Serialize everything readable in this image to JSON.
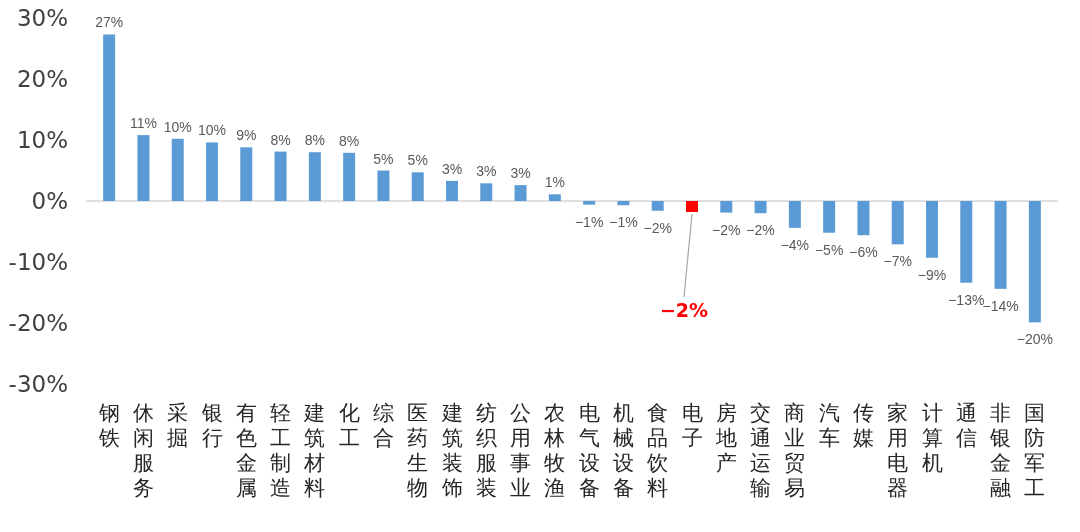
{
  "chart_data": {
    "type": "bar",
    "categories": [
      "钢铁",
      "休闲服务",
      "采掘",
      "银行",
      "有色金属",
      "轻工制造",
      "建筑材料",
      "化工",
      "综合",
      "医药生物",
      "建筑装饰",
      "纺织服装",
      "公用事业",
      "农林牧渔",
      "电气设备",
      "机械设备",
      "食品饮料",
      "电子",
      "房地产",
      "交通运输",
      "商业贸易",
      "汽车",
      "传媒",
      "家用电器",
      "计算机",
      "通信",
      "非银金融",
      "国防军工"
    ],
    "values": [
      27.3,
      10.8,
      10.2,
      9.6,
      8.8,
      8.1,
      8.0,
      7.9,
      5.0,
      4.7,
      3.3,
      2.9,
      2.6,
      1.1,
      -0.6,
      -0.7,
      -1.6,
      -1.8,
      -1.9,
      -2.0,
      -4.4,
      -5.2,
      -5.6,
      -7.1,
      -9.3,
      -13.4,
      -14.4,
      -19.9
    ],
    "colors": [
      "#5b9bd5",
      "#5b9bd5",
      "#5b9bd5",
      "#5b9bd5",
      "#5b9bd5",
      "#5b9bd5",
      "#5b9bd5",
      "#5b9bd5",
      "#5b9bd5",
      "#5b9bd5",
      "#5b9bd5",
      "#5b9bd5",
      "#5b9bd5",
      "#5b9bd5",
      "#5b9bd5",
      "#5b9bd5",
      "#5b9bd5",
      "#ff0000",
      "#5b9bd5",
      "#5b9bd5",
      "#5b9bd5",
      "#5b9bd5",
      "#5b9bd5",
      "#5b9bd5",
      "#5b9bd5",
      "#5b9bd5",
      "#5b9bd5",
      "#5b9bd5"
    ],
    "value_labels": [
      "27%",
      "11%",
      "10%",
      "10%",
      "9%",
      "8%",
      "8%",
      "8%",
      "5%",
      "5%",
      "3%",
      "3%",
      "3%",
      "1%",
      "−1%",
      "−1%",
      "−2%",
      "−2%",
      "−2%",
      "−2%",
      "−4%",
      "−5%",
      "−6%",
      "−7%",
      "−9%",
      "−13%",
      "−14%",
      "−20%"
    ],
    "ylim": [
      -30,
      30
    ],
    "yticks": [
      {
        "value": -30,
        "label": "-30%"
      },
      {
        "value": -20,
        "label": "-20%"
      },
      {
        "value": -10,
        "label": "-10%"
      },
      {
        "value": 0,
        "label": "0%"
      },
      {
        "value": 10,
        "label": "10%"
      },
      {
        "value": 20,
        "label": "20%"
      },
      {
        "value": 30,
        "label": "30%"
      }
    ],
    "orientation": "vertical"
  }
}
